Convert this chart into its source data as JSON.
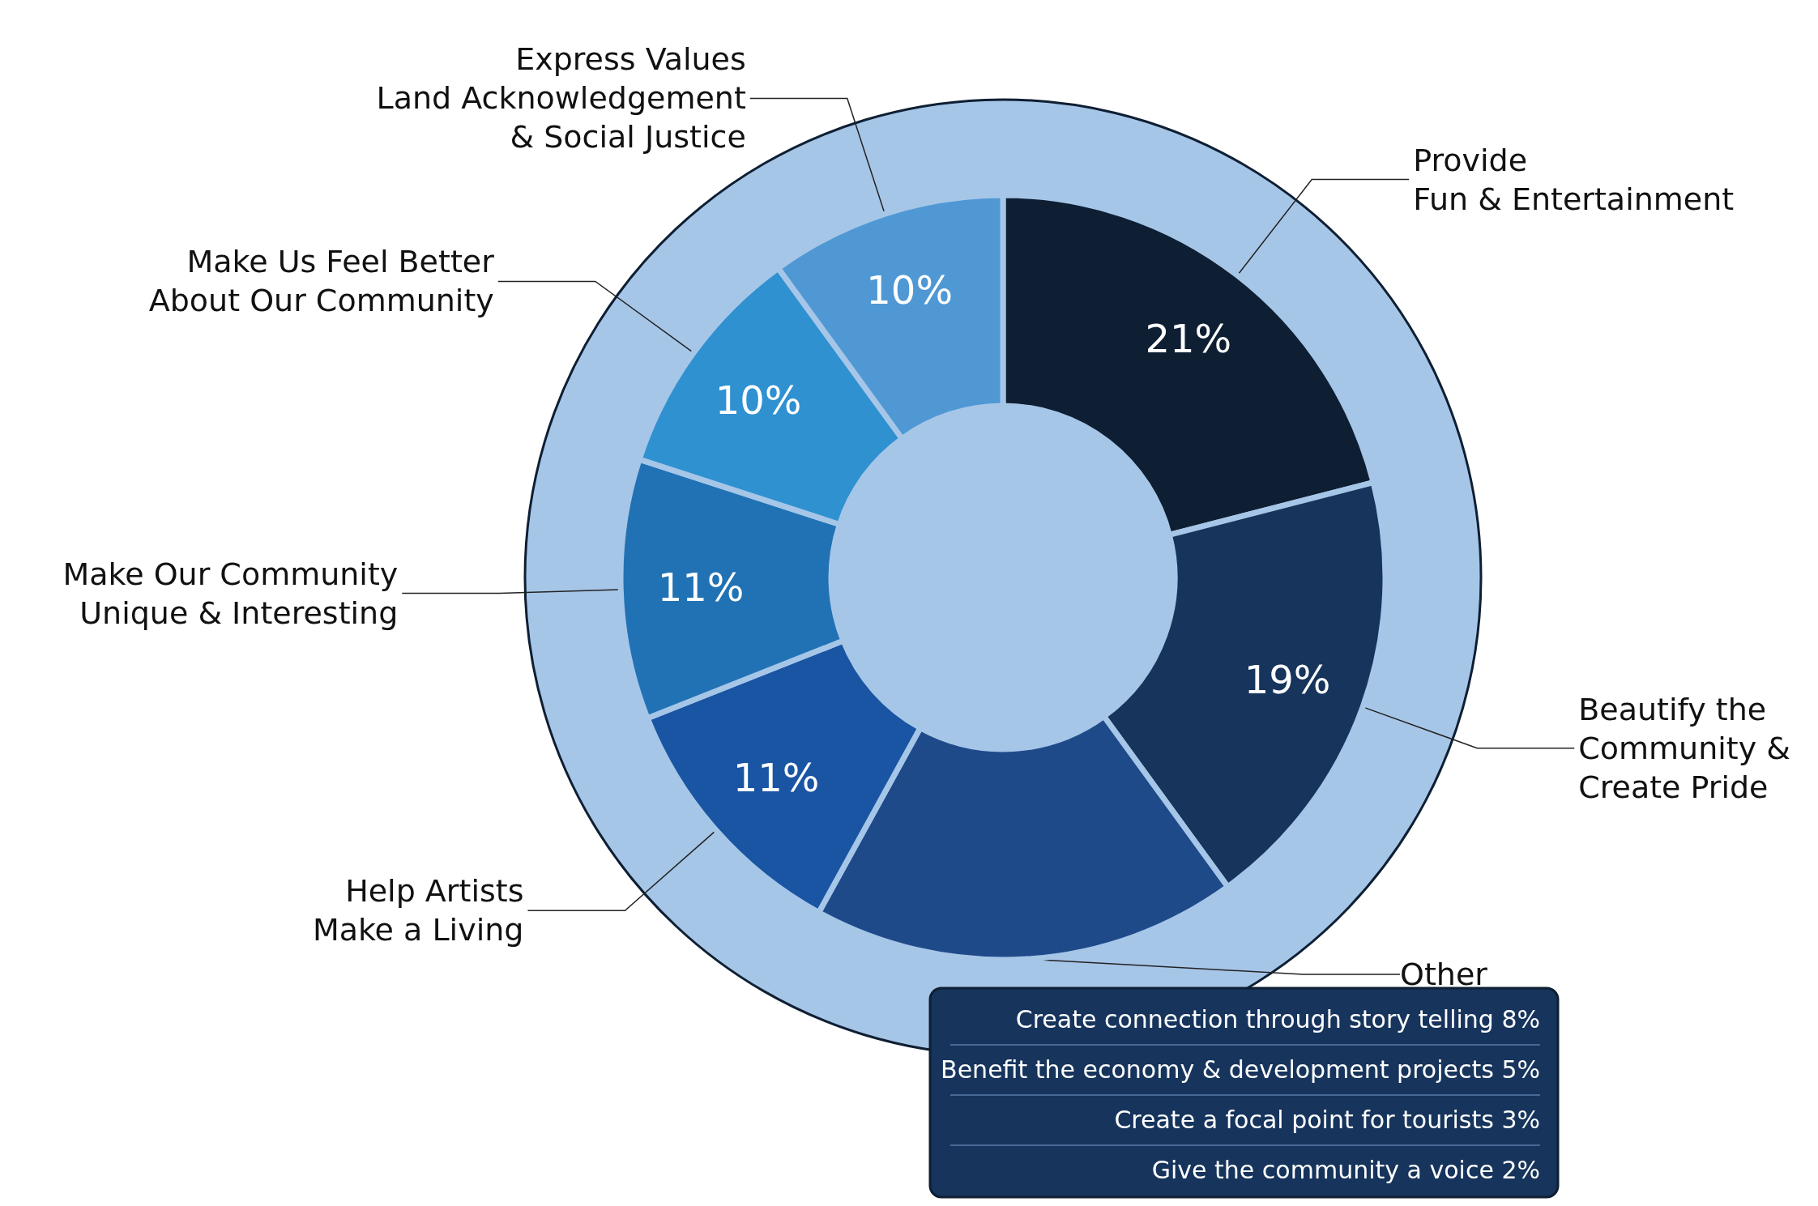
{
  "chart_data": {
    "type": "donut",
    "categories": [
      "Provide\nFun & Entertainment",
      "Beautify the\nCommunity &\nCreate Pride",
      "Other",
      "Help Artists\nMake a Living",
      "Make Our Community\nUnique & Interesting",
      "Make Us Feel Better\nAbout Our Community",
      "Express Values\nLand Acknowledgement\n& Social Justice"
    ],
    "values": [
      21,
      19,
      18,
      11,
      11,
      10,
      10
    ],
    "value_labels": [
      "21%",
      "19%",
      null,
      "11%",
      "11%",
      "10%",
      "10%"
    ],
    "colors": [
      "#0f1f33",
      "#16345c",
      "#1f4a8a",
      "#1a55a3",
      "#2172b4",
      "#2f91d0",
      "#4f98d4"
    ],
    "annotations": [
      "Create connection through story telling 8%",
      "Benefit the economy & development projects 5%",
      "Create a focal point for tourists 3%",
      "Give the community a voice 2%"
    ],
    "legend": false
  }
}
